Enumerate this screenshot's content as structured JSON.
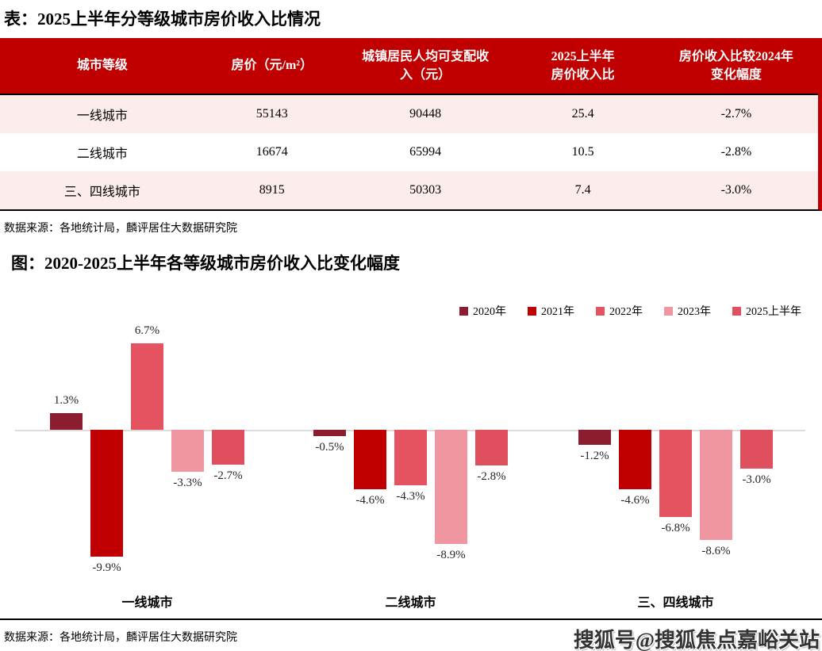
{
  "table_section": {
    "title": "表：2025上半年分等级城市房价收入比情况",
    "source": "数据来源：各地统计局，麟评居住大数据研究院",
    "header_bg": "#C00000",
    "alt_row_bg": "#FCECEB",
    "columns": [
      "城市等级",
      "房价（元/m²）",
      "城镇居民人均可支配收\n入（元）",
      "2025上半年\n房价收入比",
      "房价收入比较2024年\n变化幅度"
    ],
    "rows": [
      [
        "一线城市",
        "55143",
        "90448",
        "25.4",
        "-2.7%"
      ],
      [
        "二线城市",
        "16674",
        "65994",
        "10.5",
        "-2.8%"
      ],
      [
        "三、四线城市",
        "8915",
        "50303",
        "7.4",
        "-3.0%"
      ]
    ]
  },
  "chart_section": {
    "title": "图：2020-2025上半年各等级城市房价收入比变化幅度",
    "source": "数据来源：各地统计局，麟评居住大数据研究院"
  },
  "chart_data": {
    "type": "bar",
    "title": "2020-2025上半年各等级城市房价收入比变化幅度",
    "categories": [
      "一线城市",
      "二线城市",
      "三、四线城市"
    ],
    "series": [
      {
        "name": "2020年",
        "color": "#8B1D2E",
        "values": [
          1.3,
          -0.5,
          -1.2
        ],
        "labels": [
          "1.3%",
          "-0.5%",
          "-1.2%"
        ]
      },
      {
        "name": "2021年",
        "color": "#C00000",
        "values": [
          -9.9,
          -4.6,
          -4.6
        ],
        "labels": [
          "-9.9%",
          "-4.6%",
          "-4.6%"
        ]
      },
      {
        "name": "2022年",
        "color": "#E4535F",
        "values": [
          6.7,
          -4.3,
          -6.8
        ],
        "labels": [
          "6.7%",
          "-4.3%",
          "-6.8%"
        ]
      },
      {
        "name": "2023年",
        "color": "#F096A1",
        "values": [
          -3.3,
          -8.9,
          -8.6
        ],
        "labels": [
          "-3.3%",
          "-8.9%",
          "-8.6%"
        ]
      },
      {
        "name": "2025上半年",
        "color": "#E04F5E",
        "values": [
          -2.7,
          -2.8,
          -3.0
        ],
        "labels": [
          "-2.7%",
          "-2.8%",
          "-3.0%"
        ]
      }
    ],
    "unit": "%",
    "ylim": [
      -11,
      8
    ],
    "grid": false,
    "legend_position": "top-right",
    "baseline_color": "#DCDCDC"
  },
  "watermark": {
    "text": "搜狐号@搜狐焦点嘉峪关站"
  }
}
